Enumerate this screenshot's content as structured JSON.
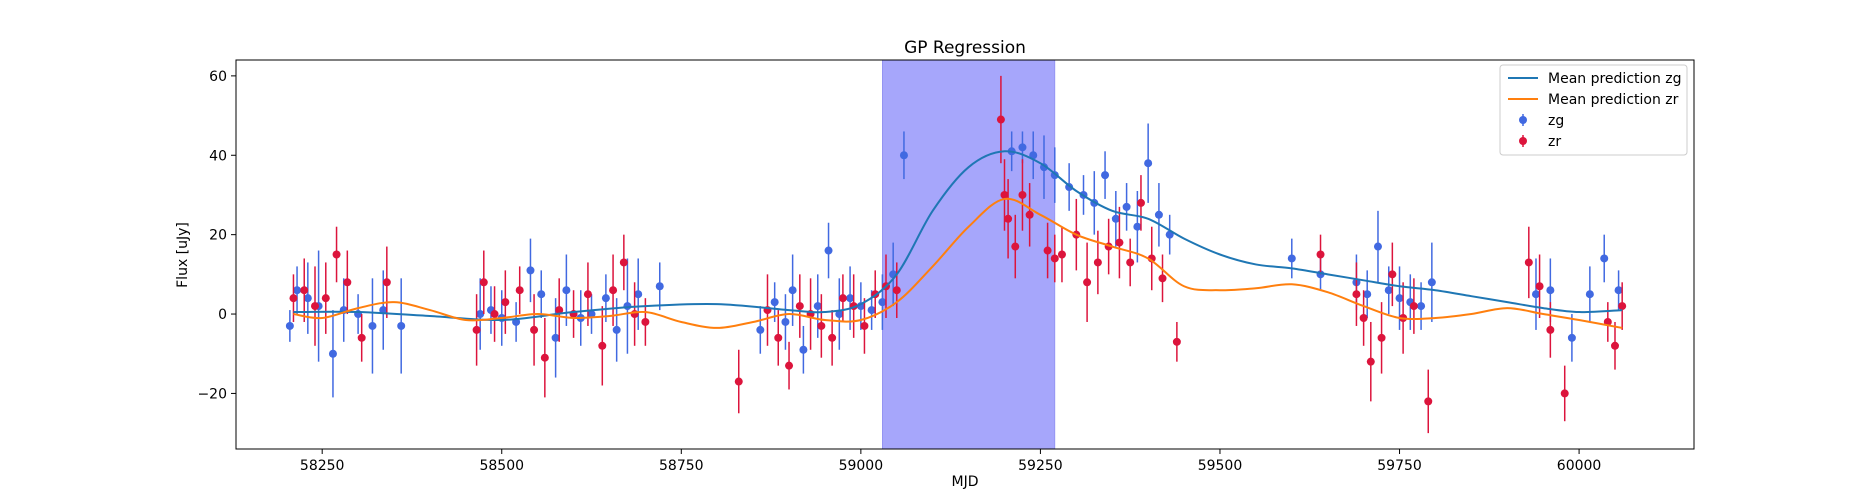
{
  "chart_data": {
    "type": "scatter",
    "title": "GP Regression",
    "xlabel": "MJD",
    "ylabel": "Flux [uJy]",
    "xlim": [
      58130,
      60160
    ],
    "ylim": [
      -34,
      64
    ],
    "xticks": [
      58250,
      58500,
      58750,
      59000,
      59250,
      59500,
      59750,
      60000
    ],
    "yticks": [
      -20,
      0,
      20,
      40,
      60
    ],
    "grid": false,
    "legend_position": "top-right",
    "shaded_region": {
      "x_start": 59030,
      "x_end": 59270,
      "color": "#a6a6fb"
    },
    "series": [
      {
        "name": "Mean prediction zg",
        "kind": "line",
        "color": "#1f77b4",
        "x": [
          58210,
          58300,
          58400,
          58500,
          58600,
          58700,
          58800,
          58900,
          58950,
          59000,
          59050,
          59100,
          59150,
          59200,
          59250,
          59300,
          59350,
          59400,
          59450,
          59500,
          59550,
          59600,
          59650,
          59700,
          59750,
          59800,
          59850,
          59900,
          59950,
          60000,
          60060
        ],
        "y": [
          0.5,
          0.5,
          -0.5,
          -1.5,
          0.5,
          2,
          2.5,
          1,
          0.5,
          2.5,
          10,
          26,
          37,
          41,
          38,
          31,
          26,
          24,
          19,
          15,
          12.5,
          11.5,
          10,
          8.5,
          7,
          6,
          4.5,
          3,
          1.5,
          0.5,
          1
        ]
      },
      {
        "name": "Mean prediction zr",
        "kind": "line",
        "color": "#ff7f0e",
        "x": [
          58210,
          58250,
          58300,
          58350,
          58400,
          58450,
          58500,
          58550,
          58600,
          58650,
          58700,
          58750,
          58800,
          58850,
          58900,
          58950,
          59000,
          59050,
          59100,
          59150,
          59200,
          59250,
          59300,
          59350,
          59400,
          59450,
          59500,
          59550,
          59600,
          59650,
          59700,
          59750,
          59800,
          59850,
          59900,
          59950,
          60000,
          60060
        ],
        "y": [
          0,
          -1,
          1.5,
          3,
          1,
          -1.5,
          -1,
          0,
          -1,
          -0.5,
          0.5,
          -2,
          -3.5,
          -2,
          0,
          -1.5,
          -1.5,
          3,
          12,
          22,
          29,
          25,
          20,
          17,
          14,
          7,
          6,
          6.5,
          7.5,
          5.5,
          2,
          -1,
          -1,
          0,
          1.5,
          0,
          -1.5,
          -3.5
        ]
      },
      {
        "name": "zg",
        "kind": "errorbar",
        "color": "#4169e1",
        "x": [
          58205,
          58215,
          58230,
          58245,
          58265,
          58280,
          58300,
          58320,
          58335,
          58360,
          58470,
          58485,
          58500,
          58520,
          58540,
          58555,
          58575,
          58590,
          58610,
          58625,
          58645,
          58660,
          58675,
          58690,
          58720,
          58860,
          58880,
          58895,
          58905,
          58920,
          58940,
          58955,
          58970,
          58985,
          59000,
          59015,
          59030,
          59045,
          59060,
          59210,
          59225,
          59240,
          59255,
          59270,
          59290,
          59310,
          59325,
          59340,
          59355,
          59370,
          59385,
          59400,
          59415,
          59430,
          59600,
          59640,
          59690,
          59705,
          59720,
          59735,
          59750,
          59765,
          59780,
          59795,
          59940,
          59960,
          59990,
          60015,
          60035,
          60055
        ],
        "y": [
          -3,
          6,
          4,
          2,
          -10,
          1,
          0,
          -3,
          1,
          -3,
          0,
          1,
          -1,
          -2,
          11,
          5,
          -6,
          6,
          -1,
          0,
          4,
          -4,
          2,
          5,
          7,
          -4,
          3,
          -2,
          6,
          -9,
          2,
          16,
          0,
          4,
          2,
          1,
          3,
          10,
          40,
          41,
          42,
          40,
          37,
          35,
          32,
          30,
          28,
          35,
          24,
          27,
          22,
          38,
          25,
          20,
          14,
          10,
          8,
          5,
          17,
          6,
          4,
          3,
          2,
          8,
          5,
          6,
          -6,
          5,
          14,
          6
        ],
        "err": [
          4,
          6,
          9,
          14,
          11,
          8,
          5,
          12,
          10,
          12,
          9,
          6,
          7,
          5,
          8,
          6,
          10,
          9,
          7,
          5,
          6,
          8,
          12,
          9,
          6,
          6,
          5,
          7,
          9,
          6,
          8,
          7,
          9,
          8,
          6,
          5,
          7,
          8,
          6,
          5,
          4,
          6,
          8,
          7,
          6,
          5,
          8,
          6,
          7,
          6,
          9,
          10,
          8,
          5,
          5,
          4,
          7,
          6,
          9,
          6,
          8,
          7,
          6,
          10,
          9,
          8,
          6,
          7,
          6,
          5
        ]
      },
      {
        "name": "zr",
        "kind": "errorbar",
        "color": "#dc143c",
        "x": [
          58210,
          58225,
          58240,
          58255,
          58270,
          58285,
          58305,
          58340,
          58465,
          58475,
          58490,
          58505,
          58525,
          58545,
          58560,
          58580,
          58600,
          58620,
          58640,
          58655,
          58670,
          58685,
          58700,
          58830,
          58870,
          58885,
          58900,
          58915,
          58930,
          58945,
          58960,
          58975,
          58990,
          59005,
          59020,
          59035,
          59050,
          59195,
          59200,
          59205,
          59215,
          59225,
          59235,
          59260,
          59270,
          59280,
          59300,
          59315,
          59330,
          59345,
          59360,
          59375,
          59390,
          59405,
          59420,
          59440,
          59640,
          59690,
          59700,
          59710,
          59725,
          59740,
          59755,
          59770,
          59790,
          59930,
          59945,
          59960,
          59980,
          60040,
          60050,
          60060
        ],
        "y": [
          4,
          6,
          2,
          4,
          15,
          8,
          -6,
          8,
          -4,
          8,
          0,
          3,
          6,
          -4,
          -11,
          1,
          0,
          5,
          -8,
          6,
          13,
          0,
          -2,
          -17,
          1,
          -6,
          -13,
          2,
          0,
          -3,
          -6,
          4,
          2,
          -3,
          5,
          7,
          6,
          49,
          30,
          24,
          17,
          30,
          25,
          16,
          14,
          15,
          20,
          8,
          13,
          17,
          18,
          13,
          28,
          14,
          9,
          -7,
          15,
          5,
          -1,
          -12,
          -6,
          10,
          -1,
          2,
          -22,
          13,
          7,
          -4,
          -20,
          -2,
          -8,
          2
        ],
        "err": [
          6,
          8,
          10,
          9,
          7,
          8,
          6,
          9,
          9,
          8,
          7,
          8,
          6,
          9,
          10,
          8,
          6,
          8,
          10,
          9,
          7,
          8,
          6,
          8,
          9,
          7,
          6,
          8,
          9,
          8,
          7,
          6,
          8,
          7,
          6,
          8,
          7,
          11,
          9,
          10,
          8,
          9,
          8,
          7,
          6,
          7,
          9,
          10,
          8,
          7,
          9,
          6,
          7,
          8,
          6,
          5,
          5,
          8,
          7,
          10,
          9,
          8,
          9,
          7,
          8,
          9,
          8,
          7,
          7,
          5,
          6,
          6
        ]
      }
    ]
  }
}
